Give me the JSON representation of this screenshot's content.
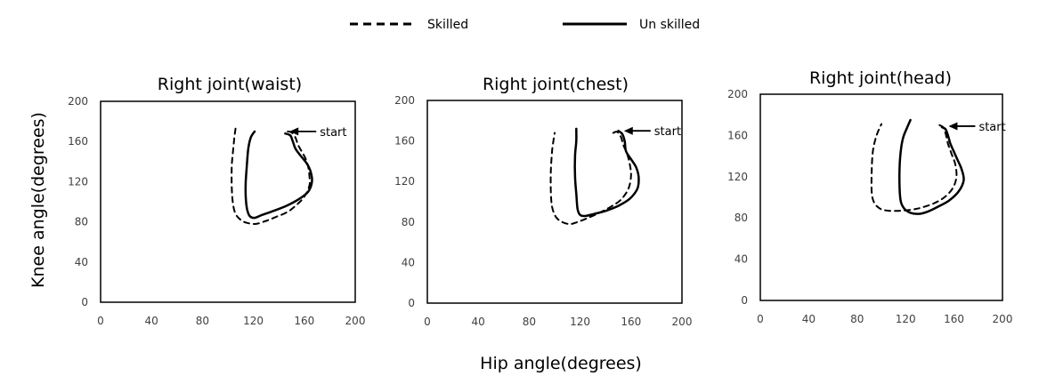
{
  "figure": {
    "xlabel": "Hip angle(degrees)",
    "ylabel": "Knee angle(degrees)",
    "legend": [
      {
        "name": "Skilled",
        "style": "dashed"
      },
      {
        "name": "Un skilled",
        "style": "solid"
      }
    ]
  },
  "colors": {
    "line": "#000000",
    "frame": "#000000",
    "tick_text": "#404040"
  },
  "chart_data": [
    {
      "type": "line",
      "title": "Right  joint(waist)",
      "xlim": [
        0,
        200
      ],
      "ylim": [
        0,
        200
      ],
      "xticks": [
        "0",
        "40",
        "80",
        "120",
        "160",
        "200"
      ],
      "yticks": [
        "0",
        "40",
        "80",
        "120",
        "160",
        "200"
      ],
      "grid": false,
      "annotation": {
        "text": "start",
        "x": 147,
        "y": 170
      },
      "series": [
        {
          "name": "Skilled",
          "style": "dashed",
          "points": [
            [
              147,
              170
            ],
            [
              150,
              169
            ],
            [
              153,
              164
            ],
            [
              155,
              157
            ],
            [
              158,
              150
            ],
            [
              161,
              143
            ],
            [
              163,
              135
            ],
            [
              164,
              126
            ],
            [
              164,
              116
            ],
            [
              160,
              105
            ],
            [
              154,
              97
            ],
            [
              147,
              90
            ],
            [
              138,
              85
            ],
            [
              130,
              81
            ],
            [
              122,
              78
            ],
            [
              115,
              79
            ],
            [
              110,
              82
            ],
            [
              106,
              88
            ],
            [
              104,
              98
            ],
            [
              103,
              115
            ],
            [
              103,
              135
            ],
            [
              104,
              150
            ],
            [
              105,
              163
            ],
            [
              106,
              173
            ]
          ]
        },
        {
          "name": "Un skilled",
          "style": "solid",
          "points": [
            [
              145,
              168
            ],
            [
              149,
              166
            ],
            [
              151,
              160
            ],
            [
              153,
              153
            ],
            [
              157,
              146
            ],
            [
              162,
              138
            ],
            [
              165,
              130
            ],
            [
              166,
              120
            ],
            [
              163,
              110
            ],
            [
              155,
              102
            ],
            [
              146,
              96
            ],
            [
              136,
              91
            ],
            [
              127,
              87
            ],
            [
              121,
              84
            ],
            [
              117,
              86
            ],
            [
              115,
              93
            ],
            [
              114,
              105
            ],
            [
              114,
              120
            ],
            [
              115,
              138
            ],
            [
              116,
              153
            ],
            [
              118,
              164
            ],
            [
              121,
              170
            ]
          ]
        }
      ]
    },
    {
      "type": "line",
      "title": "Right joint(chest)",
      "xlim": [
        0,
        200
      ],
      "ylim": [
        0,
        200
      ],
      "xticks": [
        "0",
        "40",
        "80",
        "120",
        "160",
        "200"
      ],
      "yticks": [
        "0",
        "40",
        "80",
        "120",
        "160",
        "200"
      ],
      "grid": false,
      "annotation": {
        "text": "start",
        "x": 153,
        "y": 170
      },
      "series": [
        {
          "name": "Skilled",
          "style": "dashed",
          "points": [
            [
              146,
              168
            ],
            [
              149,
              169
            ],
            [
              152,
              164
            ],
            [
              154,
              156
            ],
            [
              157,
              147
            ],
            [
              159,
              137
            ],
            [
              160,
              126
            ],
            [
              158,
              113
            ],
            [
              152,
              102
            ],
            [
              144,
              95
            ],
            [
              135,
              89
            ],
            [
              126,
              84
            ],
            [
              118,
              80
            ],
            [
              112,
              78
            ],
            [
              106,
              80
            ],
            [
              101,
              85
            ],
            [
              98,
              95
            ],
            [
              97,
              110
            ],
            [
              97,
              130
            ],
            [
              98,
              150
            ],
            [
              99,
              160
            ],
            [
              100,
              168
            ]
          ]
        },
        {
          "name": "Un skilled",
          "style": "solid",
          "points": [
            [
              150,
              170
            ],
            [
              153,
              167
            ],
            [
              155,
              160
            ],
            [
              156,
              150
            ],
            [
              160,
              142
            ],
            [
              164,
              134
            ],
            [
              166,
              124
            ],
            [
              165,
              113
            ],
            [
              159,
              103
            ],
            [
              150,
              96
            ],
            [
              140,
              91
            ],
            [
              131,
              88
            ],
            [
              124,
              86
            ],
            [
              120,
              87
            ],
            [
              118,
              93
            ],
            [
              117,
              108
            ],
            [
              116,
              125
            ],
            [
              116,
              145
            ],
            [
              117,
              160
            ],
            [
              117,
              172
            ]
          ]
        }
      ]
    },
    {
      "type": "line",
      "title": "Right joint(head)",
      "xlim": [
        0,
        200
      ],
      "ylim": [
        0,
        200
      ],
      "xticks": [
        "0",
        "40",
        "80",
        "120",
        "160",
        "200"
      ],
      "yticks": [
        "0",
        "40",
        "80",
        "120",
        "160",
        "200"
      ],
      "grid": false,
      "annotation": {
        "text": "start",
        "x": 154,
        "y": 169
      },
      "series": [
        {
          "name": "Skilled",
          "style": "dashed",
          "points": [
            [
              148,
              170
            ],
            [
              151,
              168
            ],
            [
              153,
              162
            ],
            [
              155,
              152
            ],
            [
              158,
              142
            ],
            [
              161,
              132
            ],
            [
              162,
              120
            ],
            [
              159,
              109
            ],
            [
              152,
              100
            ],
            [
              143,
              94
            ],
            [
              133,
              90
            ],
            [
              125,
              88
            ],
            [
              115,
              87
            ],
            [
              106,
              87
            ],
            [
              99,
              89
            ],
            [
              94,
              95
            ],
            [
              92,
              105
            ],
            [
              92,
              125
            ],
            [
              93,
              145
            ],
            [
              96,
              160
            ],
            [
              100,
              171
            ]
          ]
        },
        {
          "name": "Un skilled",
          "style": "solid",
          "points": [
            [
              150,
              168
            ],
            [
              153,
              166
            ],
            [
              155,
              160
            ],
            [
              157,
              152
            ],
            [
              160,
              144
            ],
            [
              163,
              136
            ],
            [
              166,
              128
            ],
            [
              168,
              117
            ],
            [
              164,
              106
            ],
            [
              156,
              97
            ],
            [
              147,
              91
            ],
            [
              138,
              86
            ],
            [
              131,
              84
            ],
            [
              124,
              85
            ],
            [
              119,
              89
            ],
            [
              116,
              96
            ],
            [
              115,
              110
            ],
            [
              115,
              128
            ],
            [
              116,
              145
            ],
            [
              118,
              158
            ],
            [
              121,
              167
            ],
            [
              124,
              175
            ]
          ]
        }
      ]
    }
  ]
}
